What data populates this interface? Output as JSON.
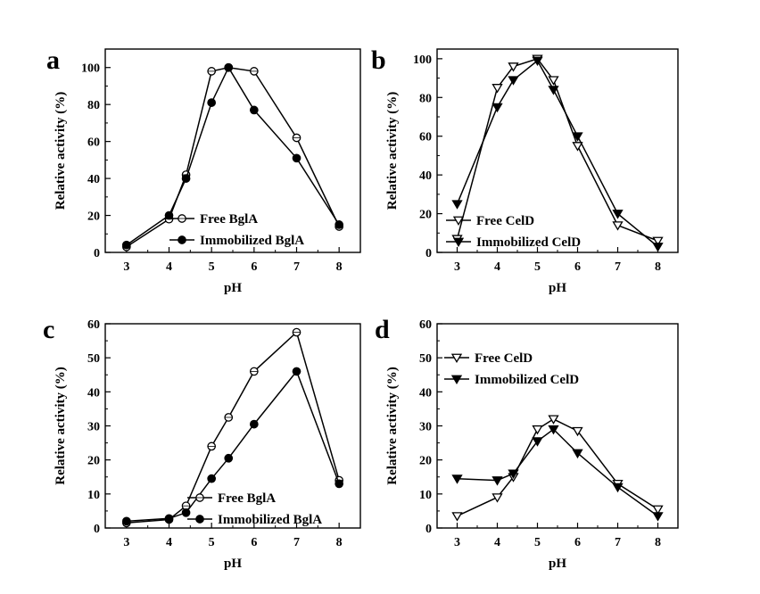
{
  "chart_data": [
    {
      "panel": "a",
      "type": "line",
      "xlabel": "pH",
      "ylabel": "Relative activity (%)",
      "xlim": [
        2.5,
        8.5
      ],
      "ylim": [
        0,
        110
      ],
      "xticks": [
        3,
        4,
        5,
        6,
        7,
        8
      ],
      "yticks": [
        0,
        20,
        40,
        60,
        80,
        100
      ],
      "legend": "bottom-left",
      "series": [
        {
          "name": "Free BglA",
          "marker": "circle-open",
          "x": [
            3,
            4,
            4.4,
            5,
            5.4,
            6,
            7,
            8
          ],
          "y": [
            3,
            18,
            42,
            98,
            100,
            98,
            62,
            14
          ]
        },
        {
          "name": "Immobilized BglA",
          "marker": "circle-filled",
          "x": [
            3,
            4,
            4.4,
            5,
            5.4,
            6,
            7,
            8
          ],
          "y": [
            4,
            20,
            40,
            81,
            100,
            77,
            51,
            15
          ]
        }
      ]
    },
    {
      "panel": "b",
      "type": "line",
      "xlabel": "pH",
      "ylabel": "Relative activity (%)",
      "xlim": [
        2.5,
        8.5
      ],
      "ylim": [
        0,
        105
      ],
      "xticks": [
        3,
        4,
        5,
        6,
        7,
        8
      ],
      "yticks": [
        0,
        20,
        40,
        60,
        80,
        100
      ],
      "legend": "bottom-left",
      "series": [
        {
          "name": "Free CelD",
          "marker": "triangle-down-open",
          "x": [
            3,
            4,
            4.4,
            5,
            5.4,
            6,
            7,
            8
          ],
          "y": [
            7,
            85,
            96,
            100,
            89,
            55,
            14,
            6
          ]
        },
        {
          "name": "Immobilized CelD",
          "marker": "triangle-down-filled",
          "x": [
            3,
            4,
            4.4,
            5,
            5.4,
            6,
            7,
            8
          ],
          "y": [
            25,
            75,
            89,
            99,
            84,
            60,
            20,
            3
          ]
        }
      ]
    },
    {
      "panel": "c",
      "type": "line",
      "xlabel": "pH",
      "ylabel": "Relative activity (%)",
      "xlim": [
        2.5,
        8.5
      ],
      "ylim": [
        0,
        60
      ],
      "xticks": [
        3,
        4,
        5,
        6,
        7,
        8
      ],
      "yticks": [
        0,
        10,
        20,
        30,
        40,
        50,
        60
      ],
      "legend": "bottom-right",
      "series": [
        {
          "name": "Free BglA",
          "marker": "circle-open",
          "x": [
            3,
            4,
            4.4,
            5,
            5.4,
            6,
            7,
            8
          ],
          "y": [
            1.5,
            2.5,
            6.5,
            24,
            32.5,
            46,
            57.5,
            14
          ]
        },
        {
          "name": "Immobilized BglA",
          "marker": "circle-filled",
          "x": [
            3,
            4,
            4.4,
            5,
            5.4,
            6,
            7,
            8
          ],
          "y": [
            2,
            2.8,
            4.5,
            14.5,
            20.5,
            30.5,
            46,
            13
          ]
        }
      ]
    },
    {
      "panel": "d",
      "type": "line",
      "xlabel": "pH",
      "ylabel": "Relative activity (%)",
      "xlim": [
        2.5,
        8.5
      ],
      "ylim": [
        0,
        60
      ],
      "xticks": [
        3,
        4,
        5,
        6,
        7,
        8
      ],
      "yticks": [
        0,
        10,
        20,
        30,
        40,
        50,
        60
      ],
      "legend": "top-left",
      "series": [
        {
          "name": "Free CelD",
          "marker": "triangle-down-open",
          "x": [
            3,
            4,
            4.4,
            5,
            5.4,
            6,
            7,
            8
          ],
          "y": [
            3.5,
            9,
            15,
            29,
            32,
            28.5,
            13,
            5.5
          ]
        },
        {
          "name": "Immobilized CelD",
          "marker": "triangle-down-filled",
          "x": [
            3,
            4,
            4.4,
            5,
            5.4,
            6,
            7,
            8
          ],
          "y": [
            14.5,
            14,
            16,
            25.5,
            29,
            22,
            12,
            3.5
          ]
        }
      ]
    }
  ]
}
